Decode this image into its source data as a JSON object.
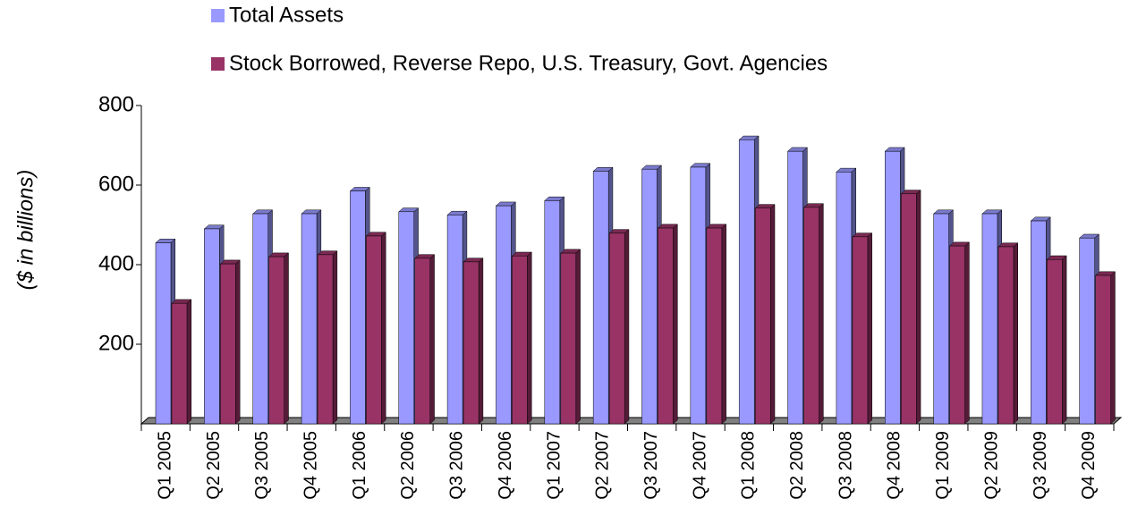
{
  "chart_data": {
    "type": "bar3d",
    "y_label": "($ in billions)",
    "categories": [
      "Q1 2005",
      "Q2 2005",
      "Q3 2005",
      "Q4 2005",
      "Q1 2006",
      "Q2 2006",
      "Q3 2006",
      "Q4 2006",
      "Q1 2007",
      "Q2 2007",
      "Q3 2007",
      "Q4 2007",
      "Q1 2008",
      "Q2 2008",
      "Q3 2008",
      "Q4 2008",
      "Q1 2009",
      "Q2 2009",
      "Q3 2009",
      "Q4 2009"
    ],
    "series": [
      {
        "name": "Total Assets",
        "color": "#9999ff",
        "values": [
          455,
          490,
          528,
          528,
          585,
          533,
          525,
          548,
          561,
          635,
          640,
          645,
          714,
          685,
          633,
          685,
          528,
          528,
          510,
          467
        ]
      },
      {
        "name": "Stock Borrowed, Reverse Repo, U.S. Treasury, Govt. Agencies",
        "color": "#993366",
        "values": [
          303,
          402,
          420,
          425,
          472,
          416,
          407,
          422,
          429,
          479,
          492,
          492,
          542,
          544,
          470,
          578,
          447,
          445,
          413,
          373
        ]
      }
    ],
    "ylim": [
      0,
      800
    ],
    "yticks": [
      200,
      400,
      600,
      800
    ],
    "legend": "top-left"
  }
}
